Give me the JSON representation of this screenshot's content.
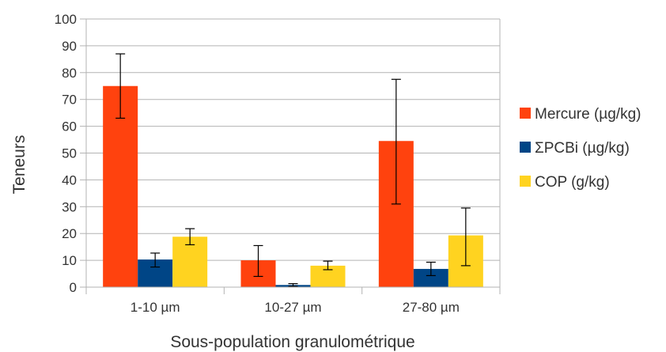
{
  "chart_data": {
    "type": "bar",
    "title": "",
    "xlabel": "Sous-population granulométrique",
    "ylabel": "Teneurs",
    "ylim": [
      0,
      100
    ],
    "yticks": [
      0,
      10,
      20,
      30,
      40,
      50,
      60,
      70,
      80,
      90,
      100
    ],
    "grid": true,
    "legend_position": "right",
    "categories": [
      "1-10 µm",
      "10-27 µm",
      "27-80 µm"
    ],
    "series": [
      {
        "name": "Mercure (µg/kg)",
        "color": "#ff420e",
        "values": [
          75,
          10,
          54.5
        ],
        "error_low": [
          63,
          4,
          31
        ],
        "error_high": [
          87,
          15.5,
          77.5
        ]
      },
      {
        "name": "ΣPCBi (µg/kg)",
        "color": "#004586",
        "values": [
          10.3,
          0.8,
          6.8
        ],
        "error_low": [
          7.5,
          0.3,
          4.3
        ],
        "error_high": [
          12.7,
          1.3,
          9.3
        ]
      },
      {
        "name": "COP (g/kg)",
        "color": "#ffd320",
        "values": [
          18.8,
          8,
          19.3
        ],
        "error_low": [
          15.8,
          6.5,
          8
        ],
        "error_high": [
          21.8,
          9.7,
          29.5
        ]
      }
    ]
  }
}
